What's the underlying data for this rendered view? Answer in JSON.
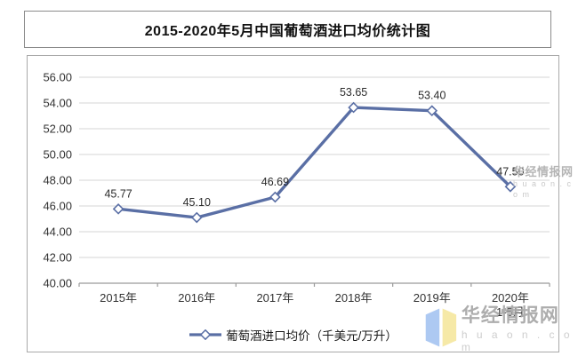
{
  "title": "2015-2020年5月中国葡萄酒进口均价统计图",
  "chart_data": {
    "type": "line",
    "title": "2015-2020年5月中国葡萄酒进口均价统计图",
    "categories": [
      "2015年",
      "2016年",
      "2017年",
      "2018年",
      "2019年",
      "2020年"
    ],
    "category_sublabels": [
      "",
      "",
      "",
      "",
      "",
      "1-5月"
    ],
    "series": [
      {
        "name": "葡萄酒进口均价（千美元/万升）",
        "values": [
          45.77,
          45.1,
          46.69,
          53.65,
          53.4,
          47.5
        ]
      }
    ],
    "data_labels": [
      "45.77",
      "45.10",
      "46.69",
      "53.65",
      "53.40",
      "47.50"
    ],
    "ylim": [
      40,
      56
    ],
    "ytick_step": 2,
    "grid": true,
    "legend_position": "bottom",
    "line_color": "#5a6fa5",
    "marker": "diamond-white",
    "gridline_color": "#d6d6d6",
    "axis_color": "#9a9a9a",
    "label_color": "#333333"
  },
  "legend": {
    "label": "葡萄酒进口均价（千美元/万升）"
  },
  "watermark": {
    "name": "华经情报网",
    "url": "huaon.com",
    "url_spaced": "h u a o n . c o m",
    "logo_blue": "#a9c7f2",
    "logo_yellow": "#f6e8a3"
  }
}
